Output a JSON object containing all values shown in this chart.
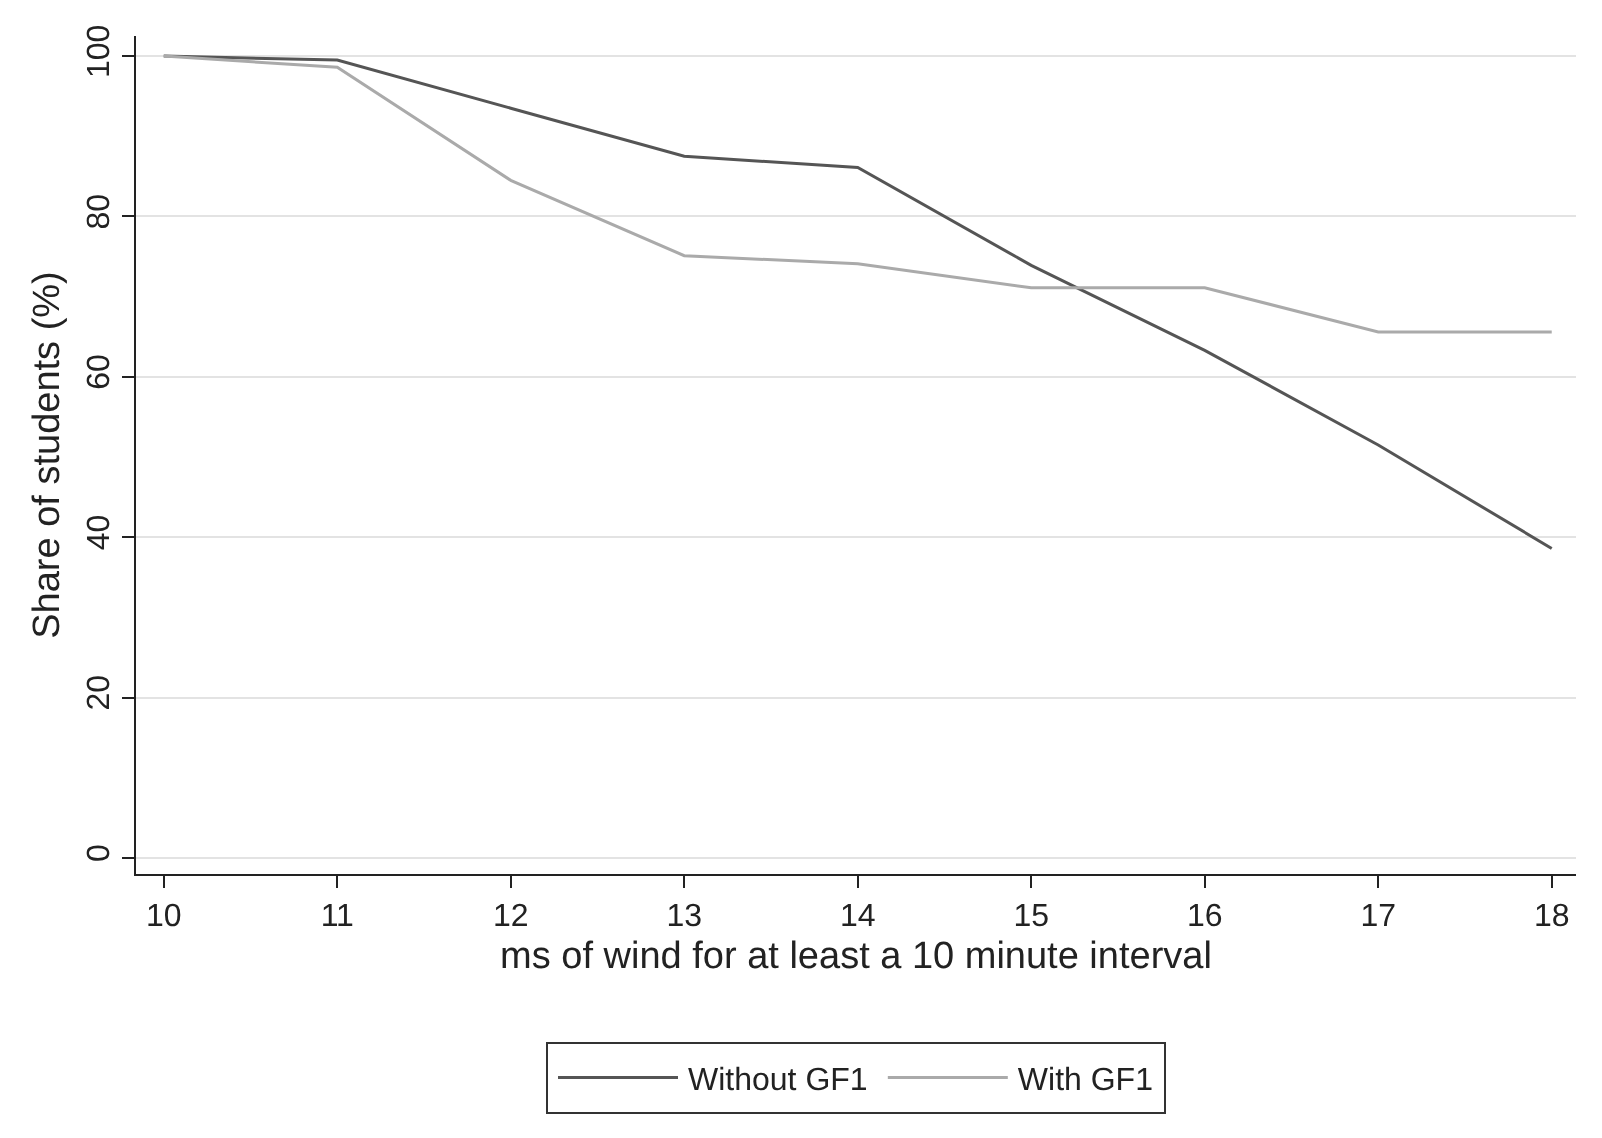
{
  "chart_data": {
    "type": "line",
    "xlabel": "ms of wind for at least a 10 minute interval",
    "ylabel": "Share of students (%)",
    "x": [
      10,
      11,
      12,
      13,
      14,
      15,
      16,
      17,
      18
    ],
    "series": [
      {
        "name": "Without GF1",
        "color": "#555555",
        "values": [
          100,
          99.5,
          93.5,
          87.5,
          86.1,
          73.9,
          63.3,
          51.5,
          38.6
        ]
      },
      {
        "name": "With GF1",
        "color": "#aaaaaa",
        "values": [
          100,
          98.6,
          84.5,
          75.1,
          74.1,
          71.1,
          71.1,
          65.6,
          65.6
        ]
      }
    ],
    "xlim": [
      9.84,
      18.14
    ],
    "ylim": [
      -2,
      102.5
    ],
    "xticks": [
      10,
      11,
      12,
      13,
      14,
      15,
      16,
      17,
      18
    ],
    "yticks": [
      0,
      20,
      40,
      60,
      80,
      100
    ],
    "grid": "y",
    "legend": "bottom",
    "marker": "none",
    "line_style": "solid"
  }
}
